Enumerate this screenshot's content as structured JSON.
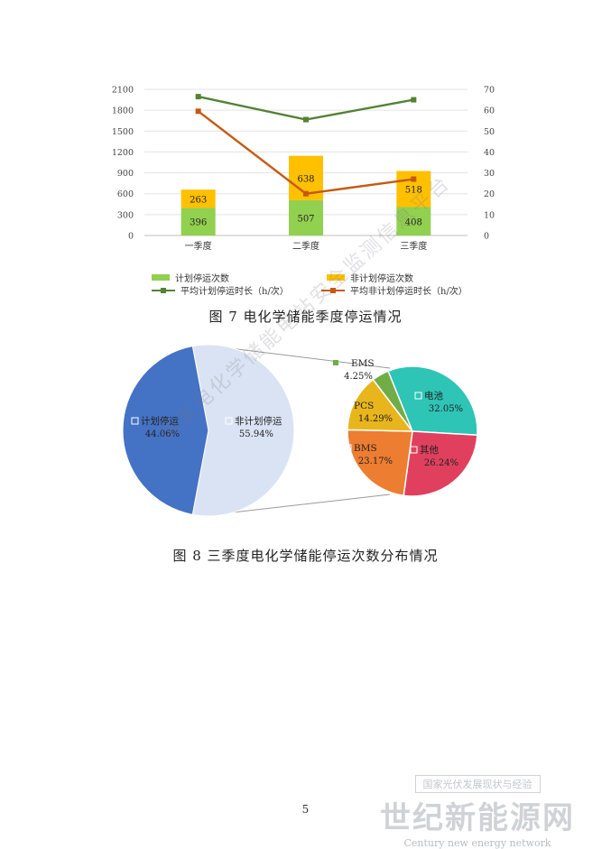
{
  "chart_data": [
    {
      "type": "bar",
      "title": "图 7 电化学储能季度停运情况",
      "categories": [
        "一季度",
        "二季度",
        "三季度"
      ],
      "series": [
        {
          "name": "计划停运次数",
          "kind": "bar",
          "color": "#92d050",
          "values": [
            396,
            507,
            408
          ]
        },
        {
          "name": "非计划停运次数",
          "kind": "bar",
          "color": "#ffc000",
          "values": [
            263,
            638,
            518
          ]
        },
        {
          "name": "平均计划停运时长（h/次）",
          "kind": "line",
          "axis": "right",
          "color": "#548235",
          "values": [
            66.5,
            55.5,
            65
          ]
        },
        {
          "name": "平均非计划停运时长（h/次）",
          "kind": "line",
          "axis": "right",
          "color": "#c55a11",
          "values": [
            59.5,
            20,
            27
          ]
        }
      ],
      "ylim": [
        0,
        2100
      ],
      "yticks": [
        "2100",
        "1800",
        "1500",
        "1200",
        "900",
        "600",
        "300",
        "0"
      ],
      "y2lim": [
        0,
        70
      ],
      "y2ticks": [
        "70",
        "60",
        "50",
        "40",
        "30",
        "20",
        "10",
        "0"
      ],
      "legend_placement": "bottom"
    },
    {
      "type": "pie",
      "title": "图 8 三季度电化学储能停运次数分布情况",
      "slices": [
        {
          "label": "计划停运",
          "value": 44.06,
          "text": "44.06%",
          "color": "#4472c4"
        },
        {
          "label": "非计划停运",
          "value": 55.94,
          "text": "55.94%",
          "color": "#dae3f3"
        }
      ],
      "breakdown_of": "非计划停运",
      "breakdown": [
        {
          "label": "电池",
          "value": 32.05,
          "text": "32.05%",
          "color": "#2ec4b6"
        },
        {
          "label": "其他",
          "value": 26.24,
          "text": "26.24%",
          "color": "#e0405e"
        },
        {
          "label": "BMS",
          "value": 23.17,
          "text": "23.17%",
          "color": "#ed7d31"
        },
        {
          "label": "PCS",
          "value": 14.29,
          "text": "14.29%",
          "color": "#e8b51c"
        },
        {
          "label": "EMS",
          "value": 4.25,
          "text": "4.25%",
          "color": "#70ad47"
        }
      ]
    }
  ],
  "page": {
    "number": "5",
    "watermark": "国家电化学储能电站安全监测信息平台",
    "brand_top": "国家光伏发展现状与经验",
    "brand_main": "世纪新能源网",
    "brand_sub": "Century new energy network"
  }
}
